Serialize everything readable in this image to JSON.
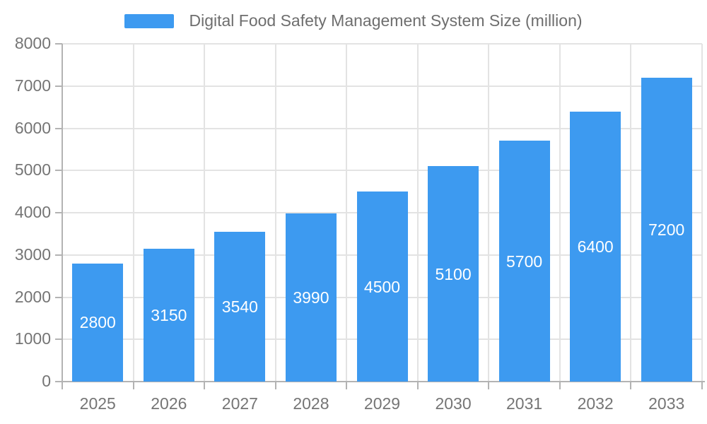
{
  "chart_data": {
    "type": "bar",
    "title": "Digital Food Safety Management System Size (million)",
    "categories": [
      "2025",
      "2026",
      "2027",
      "2028",
      "2029",
      "2030",
      "2031",
      "2032",
      "2033"
    ],
    "values": [
      2800,
      3150,
      3540,
      3990,
      4500,
      5100,
      5700,
      6400,
      7200
    ],
    "xlabel": "",
    "ylabel": "",
    "ylim": [
      0,
      8000
    ],
    "ytick_step": 1000,
    "ytick_labels": [
      "0",
      "1000",
      "2000",
      "3000",
      "4000",
      "5000",
      "6000",
      "7000",
      "8000"
    ],
    "grid": "on",
    "legend_position": "top-center",
    "value_labels": "inside-bar-centered"
  },
  "colors": {
    "bar": "#3d9af0",
    "grid": "#e3e3e3",
    "axis": "#b3b3b3",
    "tick_text": "#757575",
    "title_text": "#6e6e6e",
    "bar_label": "#ffffff",
    "background": "#ffffff"
  }
}
